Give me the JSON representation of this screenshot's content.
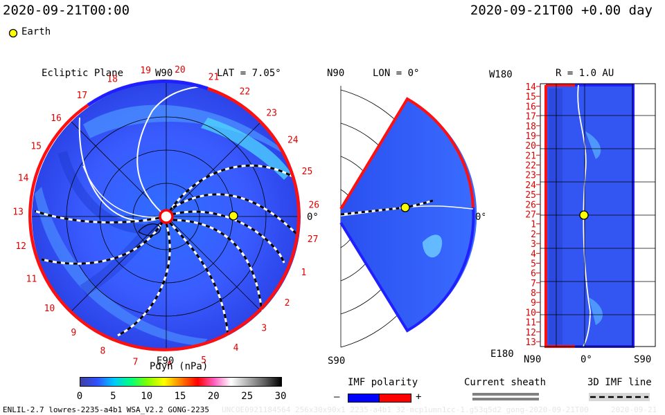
{
  "header": {
    "left_timestamp": "2020-09-21T00:00",
    "right_timestamp": "2020-09-21T00 +0.00 day"
  },
  "legend": {
    "earth_label": "Earth",
    "earth_color": "#ffff00"
  },
  "ecliptic": {
    "title": "Ecliptic Plane",
    "lat_label": "LAT = 7.05°",
    "top_label": "W90",
    "bottom_label": "E90",
    "right_label": "0°",
    "sector_numbers": [
      "19",
      "20",
      "21",
      "22",
      "23",
      "24",
      "25",
      "26",
      "27",
      "1",
      "2",
      "3",
      "4",
      "5",
      "6",
      "7",
      "8",
      "9",
      "10",
      "11",
      "12",
      "13",
      "14",
      "15",
      "16",
      "17",
      "18"
    ]
  },
  "meridional": {
    "lon_label": "LON = 0°",
    "top_label": "N90",
    "bottom_label": "S90",
    "right_label": "0°"
  },
  "radial": {
    "r_label": "R = 1.0 AU",
    "top_left": "W180",
    "bottom_left": "E180",
    "bottom_axis": [
      "N90",
      "0°",
      "S90"
    ],
    "y_labels": [
      "14",
      "15",
      "16",
      "17",
      "18",
      "19",
      "20",
      "21",
      "22",
      "23",
      "24",
      "25",
      "26",
      "27",
      "1",
      "2",
      "3",
      "4",
      "5",
      "6",
      "7",
      "8",
      "9",
      "10",
      "11",
      "12",
      "13"
    ]
  },
  "colorbar": {
    "title": "Pdyn (nPa)",
    "ticks": [
      "0",
      "5",
      "10",
      "15",
      "20",
      "25",
      "30"
    ],
    "stops": [
      "#4040a0",
      "#3050ff",
      "#00c8ff",
      "#00ff80",
      "#80ff00",
      "#ffff00",
      "#ff8000",
      "#ff0000",
      "#ff60c0",
      "#ffffff",
      "#b0b0b0",
      "#606060",
      "#000000"
    ]
  },
  "imf_polarity": {
    "title": "IMF polarity",
    "minus": "–",
    "plus": "+",
    "neg_color": "#0000ff",
    "pos_color": "#ff0000"
  },
  "current_sheath": {
    "title": "Current sheath"
  },
  "imf_line": {
    "title": "3D IMF line"
  },
  "footer": {
    "left": "ENLIL-2.7 lowres-2235-a4b1 WSA_V2.2 GONG-2235",
    "middle": "UNCOE0921184564 256x30x90x1 2235-a4b1 32-mcp1umn1cc-1.g53q5d2 gong-2020-09-21T00",
    "right": "2020-09-21"
  }
}
